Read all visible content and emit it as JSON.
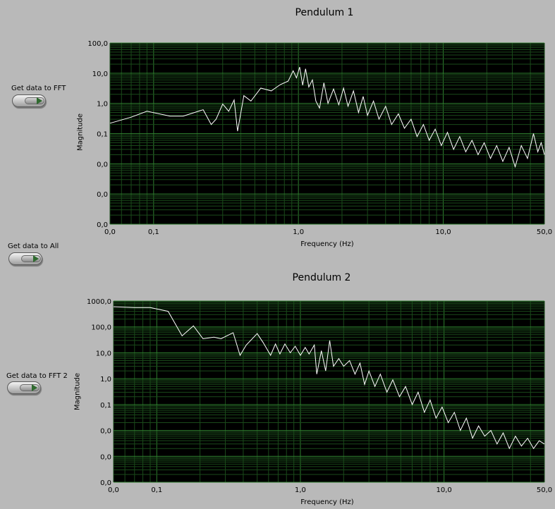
{
  "controls": {
    "get_fft": "Get data to FFT",
    "get_all": "Get data to All",
    "get_fft2": "Get data to FFT 2"
  },
  "colors": {
    "panel_bg": "#b9b9b9",
    "plot_bg": "#000000",
    "major_grid": "#2e7d2e",
    "minor_grid": "#1a4a1a",
    "trace": "#ffffff"
  },
  "chart_data": [
    {
      "type": "line",
      "title": "Pendulum 1",
      "xlabel": "Frequency (Hz)",
      "ylabel": "Magnitude",
      "xscale": "log",
      "yscale": "log",
      "xlim": [
        0.05,
        50
      ],
      "ylim": [
        0.001,
        100
      ],
      "grid": true,
      "x_ticks": [
        {
          "v": 0.05,
          "label": "0,0"
        },
        {
          "v": 0.1,
          "label": "0,1"
        },
        {
          "v": 1,
          "label": "1,0"
        },
        {
          "v": 10,
          "label": "10,0"
        },
        {
          "v": 50,
          "label": "50,0"
        }
      ],
      "y_ticks": [
        {
          "v": 100,
          "label": "100,0"
        },
        {
          "v": 10,
          "label": "10,0"
        },
        {
          "v": 1,
          "label": "1,0"
        },
        {
          "v": 0.1,
          "label": "0,1"
        },
        {
          "v": 0.01,
          "label": "0,0"
        },
        {
          "v": 0.001,
          "label": "0,0"
        },
        {
          "v": 0.0001,
          "label": "0,0"
        }
      ],
      "points": [
        [
          0.05,
          0.22
        ],
        [
          0.07,
          0.35
        ],
        [
          0.09,
          0.55
        ],
        [
          0.13,
          0.38
        ],
        [
          0.16,
          0.38
        ],
        [
          0.22,
          0.62
        ],
        [
          0.25,
          0.2
        ],
        [
          0.27,
          0.3
        ],
        [
          0.3,
          0.95
        ],
        [
          0.33,
          0.55
        ],
        [
          0.36,
          1.3
        ],
        [
          0.38,
          0.12
        ],
        [
          0.42,
          1.8
        ],
        [
          0.47,
          1.2
        ],
        [
          0.55,
          3.2
        ],
        [
          0.65,
          2.6
        ],
        [
          0.75,
          4.2
        ],
        [
          0.85,
          5.5
        ],
        [
          0.92,
          12
        ],
        [
          0.97,
          7
        ],
        [
          1.02,
          16
        ],
        [
          1.07,
          4
        ],
        [
          1.12,
          14
        ],
        [
          1.18,
          3.5
        ],
        [
          1.25,
          6
        ],
        [
          1.32,
          1.2
        ],
        [
          1.4,
          0.7
        ],
        [
          1.5,
          4.8
        ],
        [
          1.6,
          1
        ],
        [
          1.75,
          3
        ],
        [
          1.9,
          0.9
        ],
        [
          2.05,
          3.2
        ],
        [
          2.2,
          0.8
        ],
        [
          2.4,
          2.6
        ],
        [
          2.6,
          0.5
        ],
        [
          2.8,
          1.7
        ],
        [
          3.0,
          0.4
        ],
        [
          3.3,
          1.2
        ],
        [
          3.6,
          0.3
        ],
        [
          4.0,
          0.8
        ],
        [
          4.4,
          0.2
        ],
        [
          4.9,
          0.45
        ],
        [
          5.4,
          0.15
        ],
        [
          6.0,
          0.3
        ],
        [
          6.6,
          0.08
        ],
        [
          7.3,
          0.2
        ],
        [
          8.0,
          0.06
        ],
        [
          8.8,
          0.14
        ],
        [
          9.7,
          0.04
        ],
        [
          10.7,
          0.11
        ],
        [
          11.8,
          0.03
        ],
        [
          13,
          0.08
        ],
        [
          14.3,
          0.025
        ],
        [
          15.8,
          0.06
        ],
        [
          17.4,
          0.02
        ],
        [
          19.2,
          0.05
        ],
        [
          21.2,
          0.015
        ],
        [
          23.4,
          0.04
        ],
        [
          25.8,
          0.012
        ],
        [
          28.5,
          0.035
        ],
        [
          31.4,
          0.008
        ],
        [
          34.6,
          0.04
        ],
        [
          38.2,
          0.015
        ],
        [
          42,
          0.1
        ],
        [
          45,
          0.025
        ],
        [
          47.5,
          0.05
        ],
        [
          50,
          0.02
        ]
      ]
    },
    {
      "type": "line",
      "title": "Pendulum 2",
      "xlabel": "Frequency (Hz)",
      "ylabel": "Magnitude",
      "xscale": "log",
      "yscale": "log",
      "xlim": [
        0.05,
        50
      ],
      "ylim": [
        0.001,
        1000
      ],
      "grid": true,
      "x_ticks": [
        {
          "v": 0.05,
          "label": "0,0"
        },
        {
          "v": 0.1,
          "label": "0,1"
        },
        {
          "v": 1,
          "label": "1,0"
        },
        {
          "v": 10,
          "label": "10,0"
        },
        {
          "v": 50,
          "label": "50,0"
        }
      ],
      "y_ticks": [
        {
          "v": 1000,
          "label": "1000,0"
        },
        {
          "v": 100,
          "label": "100,0"
        },
        {
          "v": 10,
          "label": "10,0"
        },
        {
          "v": 1,
          "label": "1,0"
        },
        {
          "v": 0.1,
          "label": "0,1"
        },
        {
          "v": 0.01,
          "label": "0,0"
        },
        {
          "v": 0.001,
          "label": "0,0"
        },
        {
          "v": 0.0001,
          "label": "0,0"
        }
      ],
      "points": [
        [
          0.05,
          600
        ],
        [
          0.07,
          560
        ],
        [
          0.09,
          560
        ],
        [
          0.12,
          400
        ],
        [
          0.15,
          45
        ],
        [
          0.18,
          110
        ],
        [
          0.21,
          35
        ],
        [
          0.25,
          40
        ],
        [
          0.28,
          35
        ],
        [
          0.34,
          60
        ],
        [
          0.38,
          8
        ],
        [
          0.42,
          20
        ],
        [
          0.5,
          55
        ],
        [
          0.55,
          25
        ],
        [
          0.62,
          8
        ],
        [
          0.67,
          22
        ],
        [
          0.72,
          9
        ],
        [
          0.78,
          22
        ],
        [
          0.85,
          10
        ],
        [
          0.92,
          18
        ],
        [
          1.0,
          8
        ],
        [
          1.08,
          16
        ],
        [
          1.15,
          9
        ],
        [
          1.25,
          20
        ],
        [
          1.3,
          1.5
        ],
        [
          1.4,
          12
        ],
        [
          1.5,
          2
        ],
        [
          1.6,
          30
        ],
        [
          1.7,
          3
        ],
        [
          1.85,
          6
        ],
        [
          2.0,
          3
        ],
        [
          2.2,
          5
        ],
        [
          2.4,
          1.5
        ],
        [
          2.6,
          4
        ],
        [
          2.8,
          0.6
        ],
        [
          3.0,
          2
        ],
        [
          3.3,
          0.5
        ],
        [
          3.6,
          1.5
        ],
        [
          4.0,
          0.3
        ],
        [
          4.4,
          0.9
        ],
        [
          4.9,
          0.2
        ],
        [
          5.4,
          0.5
        ],
        [
          6.0,
          0.1
        ],
        [
          6.6,
          0.3
        ],
        [
          7.3,
          0.05
        ],
        [
          8.0,
          0.15
        ],
        [
          8.8,
          0.03
        ],
        [
          9.7,
          0.08
        ],
        [
          10.7,
          0.02
        ],
        [
          11.8,
          0.05
        ],
        [
          13,
          0.01
        ],
        [
          14.3,
          0.03
        ],
        [
          15.8,
          0.005
        ],
        [
          17.4,
          0.015
        ],
        [
          19.2,
          0.006
        ],
        [
          21.2,
          0.01
        ],
        [
          23.4,
          0.003
        ],
        [
          25.8,
          0.008
        ],
        [
          28.5,
          0.002
        ],
        [
          31.4,
          0.006
        ],
        [
          34.6,
          0.0025
        ],
        [
          38.2,
          0.005
        ],
        [
          42,
          0.002
        ],
        [
          46,
          0.004
        ],
        [
          50,
          0.003
        ]
      ]
    }
  ]
}
